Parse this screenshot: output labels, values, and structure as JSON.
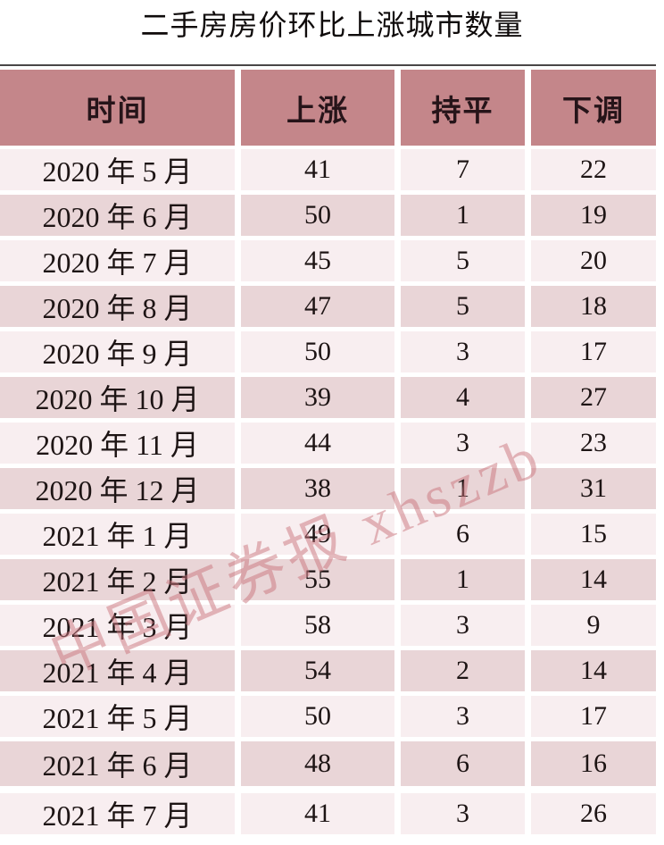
{
  "title": "二手房房价环比上涨城市数量",
  "watermark": "中国证券报 xhszzb",
  "colors": {
    "header_bg": "#c4868a",
    "row_light": "#f8eef0",
    "row_dark": "#e9d5d7",
    "top_rule": "#4a4747",
    "watermark": "#c9747b",
    "text": "#1d1414"
  },
  "chart_data": {
    "type": "table",
    "title": "二手房房价环比上涨城市数量",
    "columns": [
      "时间",
      "上涨",
      "持平",
      "下调"
    ],
    "rows": [
      [
        "2020 年 5 月",
        41,
        7,
        22
      ],
      [
        "2020 年 6 月",
        50,
        1,
        19
      ],
      [
        "2020 年 7 月",
        45,
        5,
        20
      ],
      [
        "2020 年 8 月",
        47,
        5,
        18
      ],
      [
        "2020 年 9 月",
        50,
        3,
        17
      ],
      [
        "2020 年 10 月",
        39,
        4,
        27
      ],
      [
        "2020 年 11 月",
        44,
        3,
        23
      ],
      [
        "2020 年 12 月",
        38,
        1,
        31
      ],
      [
        "2021 年 1 月",
        49,
        6,
        15
      ],
      [
        "2021 年 2 月",
        55,
        1,
        14
      ],
      [
        "2021 年 3 月",
        58,
        3,
        9
      ],
      [
        "2021 年 4 月",
        54,
        2,
        14
      ],
      [
        "2021 年 5 月",
        50,
        3,
        17
      ],
      [
        "2021 年 6 月",
        48,
        6,
        16
      ],
      [
        "2021 年 7 月",
        41,
        3,
        26
      ]
    ],
    "layout": {
      "header_position": "top",
      "zebra_striping": true
    }
  }
}
